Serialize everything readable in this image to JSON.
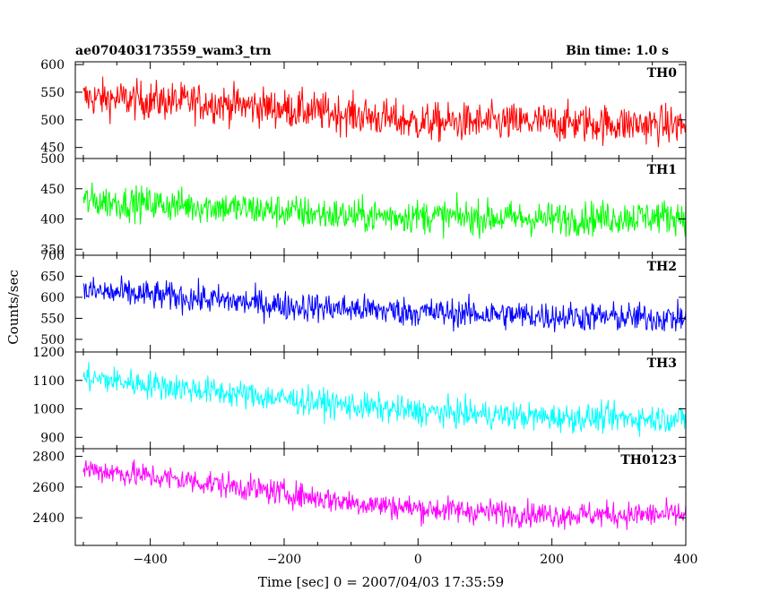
{
  "header": {
    "left_title": "ae070403173559_wam3_trn",
    "right_title": "Bin time: 1.0 s"
  },
  "chart_data": {
    "type": "line",
    "xlabel": "Time [sec] 0 = 2007/04/03 17:35:59",
    "ylabel": "Counts/sec",
    "xlim": [
      -512,
      400
    ],
    "x_ticks": [
      -400,
      -200,
      0,
      200,
      400
    ],
    "x_tick_labels": [
      "−400",
      "−200",
      "0",
      "200",
      "400"
    ],
    "panels": [
      {
        "name": "TH0",
        "color": "#ff0000",
        "ylim": [
          430,
          605
        ],
        "y_ticks": [
          450,
          500,
          550,
          600
        ],
        "y_tick_labels": [
          "450",
          "500",
          "550",
          "600"
        ],
        "trend": [
          [
            -500,
            540
          ],
          [
            -300,
            530
          ],
          [
            -100,
            510
          ],
          [
            0,
            495
          ],
          [
            200,
            495
          ],
          [
            400,
            490
          ]
        ],
        "noise": 25
      },
      {
        "name": "TH1",
        "color": "#00ff00",
        "ylim": [
          340,
          500
        ],
        "y_ticks": [
          350,
          400,
          450,
          500
        ],
        "y_tick_labels": [
          "350",
          "400",
          "450",
          "500"
        ],
        "trend": [
          [
            -500,
            430
          ],
          [
            -300,
            420
          ],
          [
            -100,
            405
          ],
          [
            0,
            405
          ],
          [
            200,
            400
          ],
          [
            400,
            405
          ]
        ],
        "noise": 20
      },
      {
        "name": "TH2",
        "color": "#0000ff",
        "ylim": [
          470,
          700
        ],
        "y_ticks": [
          500,
          550,
          600,
          650,
          700
        ],
        "y_tick_labels": [
          "500",
          "550",
          "600",
          "650",
          "700"
        ],
        "trend": [
          [
            -500,
            615
          ],
          [
            -350,
            600
          ],
          [
            -200,
            580
          ],
          [
            0,
            565
          ],
          [
            200,
            555
          ],
          [
            400,
            550
          ]
        ],
        "noise": 25
      },
      {
        "name": "TH3",
        "color": "#00ffff",
        "ylim": [
          860,
          1200
        ],
        "y_ticks": [
          900,
          1000,
          1100,
          1200
        ],
        "y_tick_labels": [
          "900",
          "1000",
          "1100",
          "1200"
        ],
        "trend": [
          [
            -500,
            1110
          ],
          [
            -300,
            1060
          ],
          [
            -100,
            1010
          ],
          [
            0,
            990
          ],
          [
            200,
            970
          ],
          [
            400,
            965
          ]
        ],
        "noise": 35
      },
      {
        "name": "TH0123",
        "color": "#ff00ff",
        "ylim": [
          2220,
          2850
        ],
        "y_ticks": [
          2400,
          2600,
          2800
        ],
        "y_tick_labels": [
          "2400",
          "2600",
          "2800"
        ],
        "trend": [
          [
            -500,
            2720
          ],
          [
            -300,
            2620
          ],
          [
            -100,
            2500
          ],
          [
            0,
            2460
          ],
          [
            200,
            2420
          ],
          [
            400,
            2420
          ]
        ],
        "noise": 60
      }
    ]
  }
}
